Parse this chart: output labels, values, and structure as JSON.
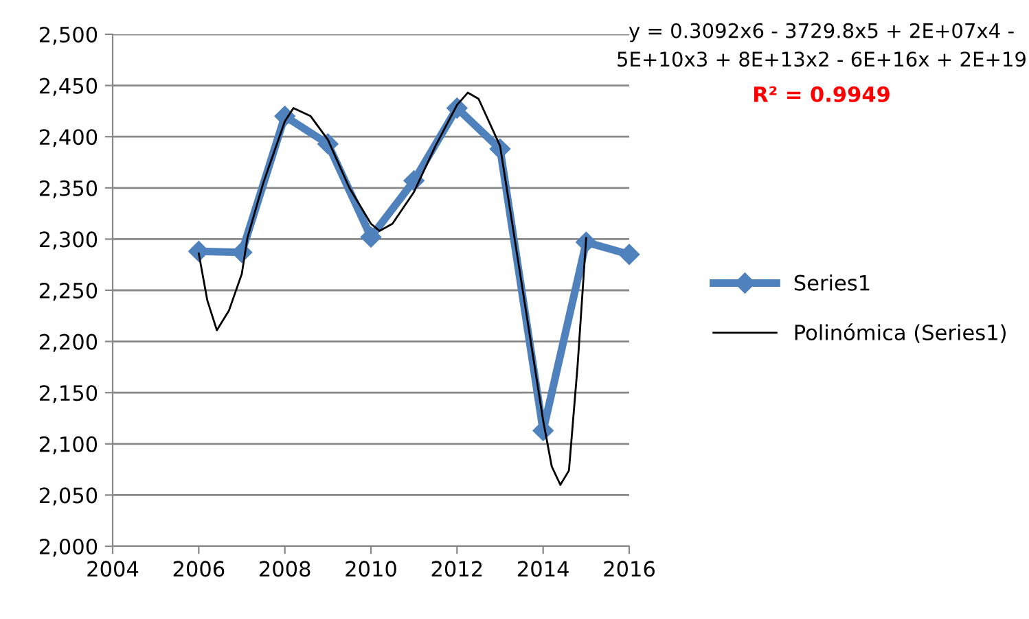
{
  "chart_data": {
    "type": "line",
    "x": [
      2006,
      2007,
      2008,
      2009,
      2010,
      2011,
      2012,
      2013,
      2014,
      2015,
      2016
    ],
    "series": [
      {
        "name": "Series1",
        "color": "#4f81bd",
        "values": [
          2288,
          2287,
          2420,
          2393,
          2302,
          2357,
          2428,
          2388,
          2113,
          2297,
          2285
        ]
      },
      {
        "name": "Polinómica (Series1)",
        "color": "#000000",
        "type": "line",
        "marker": "none",
        "x": [
          2006,
          2006.2,
          2006.42,
          2006.7,
          2007,
          2007.13,
          2007.5,
          2008,
          2008.2,
          2008.6,
          2009,
          2009.5,
          2010,
          2010.2,
          2010.5,
          2011,
          2011.5,
          2012,
          2012.25,
          2012.5,
          2013,
          2013.5,
          2014,
          2014.2,
          2014.4,
          2014.6,
          2014.8,
          2015
        ],
        "values": [
          2286,
          2240,
          2211,
          2230,
          2266,
          2301,
          2355,
          2415,
          2428,
          2420,
          2397,
          2350,
          2315,
          2308,
          2315,
          2346,
          2391,
          2431,
          2443,
          2437,
          2391,
          2257,
          2123,
          2078,
          2060,
          2074,
          2176,
          2301
        ]
      }
    ],
    "xlim": [
      2004,
      2016
    ],
    "xticks": [
      2004,
      2006,
      2008,
      2010,
      2012,
      2014,
      2016
    ],
    "ylim": [
      2000,
      2500
    ],
    "yticks": [
      {
        "value": 2000,
        "label": "2,000"
      },
      {
        "value": 2050,
        "label": "2,050"
      },
      {
        "value": 2100,
        "label": "2,100"
      },
      {
        "value": 2150,
        "label": "2,150"
      },
      {
        "value": 2200,
        "label": "2,200"
      },
      {
        "value": 2250,
        "label": "2,250"
      },
      {
        "value": 2300,
        "label": "2,300"
      },
      {
        "value": 2350,
        "label": "2,350"
      },
      {
        "value": 2400,
        "label": "2,400"
      },
      {
        "value": 2450,
        "label": "2,450"
      },
      {
        "value": 2500,
        "label": "2,500"
      }
    ],
    "grid": "y",
    "legend": "right",
    "marker": "diamond",
    "annotations": [
      "y = 0.3092x6 - 3729.8x5 + 2E+07x4 - 5E+10x3 + 8E+13x2 - 6E+16x + 2E+19",
      "R² = 0.9949"
    ]
  }
}
